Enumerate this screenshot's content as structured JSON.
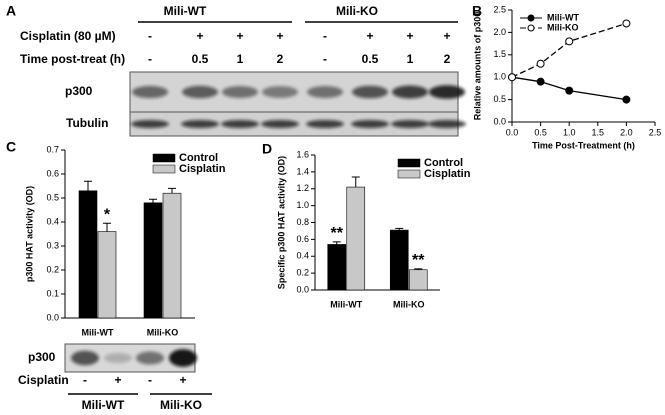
{
  "panel_labels": [
    "A",
    "B",
    "C",
    "D"
  ],
  "blot_a": {
    "groups": [
      "Mili-WT",
      "Mili-KO"
    ],
    "rows": [
      {
        "label": "Cisplatin (80 µM)",
        "lanes": [
          "-",
          "+",
          "+",
          "+",
          "-",
          "+",
          "+",
          "+"
        ]
      },
      {
        "label": "Time post-treat (h)",
        "lanes": [
          "-",
          "0.5",
          "1",
          "2",
          "-",
          "0.5",
          "1",
          "2"
        ]
      }
    ],
    "bands": [
      "p300",
      "Tubulin"
    ]
  },
  "blot_c": {
    "band": "p300",
    "row_label": "Cisplatin",
    "lanes": [
      "-",
      "+",
      "-",
      "+"
    ],
    "groups": [
      "Mili-WT",
      "Mili-KO"
    ]
  },
  "chart_data": [
    {
      "type": "line",
      "x_label": "Time Post-Treatment (h)",
      "y_label": "Relative amounts of p300",
      "x": [
        0,
        0.5,
        1,
        2
      ],
      "series": [
        {
          "name": "Mili-WT",
          "color": "#000000",
          "marker_fill": "#000000",
          "line_style": "solid",
          "values": [
            1.0,
            0.9,
            0.7,
            0.5
          ]
        },
        {
          "name": "Mili-KO",
          "color": "#000000",
          "marker_fill": "#ffffff",
          "line_style": "dashed",
          "values": [
            1.0,
            1.3,
            1.8,
            2.2
          ]
        }
      ],
      "xlim": [
        0,
        2.5
      ],
      "xticks": [
        {
          "value": 0,
          "label": "0.0"
        },
        0.5,
        {
          "value": 1,
          "label": "1.0"
        },
        1.5,
        {
          "value": 2,
          "label": "2.0"
        },
        2.5
      ],
      "ylim": [
        0,
        2.5
      ],
      "yticks": [
        {
          "value": 0,
          "label": "0.0"
        },
        0.5,
        {
          "value": 1,
          "label": "1.0"
        },
        1.5,
        {
          "value": 2,
          "label": "2.0"
        },
        2.5
      ],
      "legend": "upper-left"
    },
    {
      "type": "bar",
      "y_label": "p300 HAT activity (OD)",
      "categories": [
        "Mili-WT",
        "Mili-KO"
      ],
      "series": [
        {
          "name": "Control",
          "color": "#000000",
          "values": [
            0.53,
            0.48
          ],
          "errors": [
            0.04,
            0.015
          ]
        },
        {
          "name": "Cisplatin",
          "color": "#c8c8c8",
          "values": [
            0.36,
            0.52
          ],
          "errors": [
            0.035,
            0.02
          ]
        }
      ],
      "ylim": [
        0,
        0.7
      ],
      "yticks": [
        {
          "value": 0,
          "label": "0.0"
        },
        0.1,
        0.2,
        0.3,
        0.4,
        0.5,
        0.6,
        0.7
      ],
      "annotations": [
        "*"
      ],
      "legend": "upper-right"
    },
    {
      "type": "bar",
      "y_label": "Specific p300 HAT activity (OD)",
      "categories": [
        "Mili-WT",
        "Mili-KO"
      ],
      "series": [
        {
          "name": "Control",
          "color": "#000000",
          "values": [
            0.54,
            0.71
          ],
          "errors": [
            0.03,
            0.02
          ]
        },
        {
          "name": "Cisplatin",
          "color": "#c8c8c8",
          "values": [
            1.22,
            0.24
          ],
          "errors": [
            0.12,
            0.01
          ]
        }
      ],
      "ylim": [
        0,
        1.6
      ],
      "yticks": [
        {
          "value": 0,
          "label": "0.0"
        },
        0.2,
        0.4,
        0.6,
        0.8,
        {
          "value": 1,
          "label": "1.0"
        },
        1.2,
        1.4,
        1.6
      ],
      "annotations": [
        "**",
        "**"
      ],
      "legend": "upper-right"
    }
  ]
}
